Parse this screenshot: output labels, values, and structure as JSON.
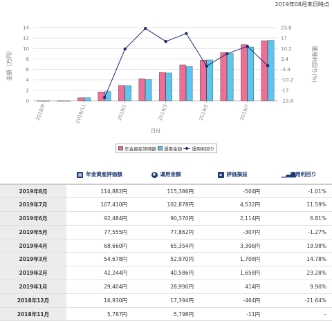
{
  "as_of": "2019年08月末日時点",
  "chart_data": {
    "type": "bar",
    "categories": [
      "2018/9",
      "2018/10",
      "2018/11",
      "2018/12",
      "2019/1",
      "2019/2",
      "2019/3",
      "2019/4",
      "2019/5",
      "2019/6",
      "2019/7",
      "2019/8"
    ],
    "x_tick_labels": [
      "2018/9",
      "2018/11",
      "2019/1",
      "2019/3",
      "2019/5",
      "2019/7"
    ],
    "xlabel": "日付",
    "ylabel": "金額（万円）",
    "y2label": "運用利回り(%)",
    "ylim": [
      0,
      14
    ],
    "y_ticks": [
      0,
      2,
      4,
      6,
      8,
      10,
      12,
      14
    ],
    "y2lim": [
      -23.8,
      23.8
    ],
    "y2_ticks": [
      "-23.8",
      "-17",
      "-10.2",
      "-3.4",
      "3.4",
      "10.2",
      "17",
      "23.8"
    ],
    "grid": true,
    "legend_position": "bottom",
    "series": [
      {
        "name": "年金資産評価額",
        "kind": "bar",
        "color": "#ee6e97",
        "values": [
          0,
          0,
          0.58,
          1.69,
          2.94,
          4.22,
          5.47,
          6.87,
          7.76,
          9.25,
          10.74,
          11.49
        ]
      },
      {
        "name": "運用金額",
        "kind": "bar",
        "color": "#5bc6ef",
        "values": [
          0,
          0,
          0.58,
          1.74,
          2.9,
          4.06,
          5.3,
          6.54,
          7.79,
          9.04,
          10.29,
          11.54
        ]
      },
      {
        "name": "運用利回り",
        "kind": "line",
        "color": "#1e2a6e",
        "values": [
          null,
          null,
          null,
          -21.64,
          9.9,
          23.28,
          14.78,
          19.98,
          -1.27,
          6.81,
          11.59,
          -1.01
        ]
      }
    ]
  },
  "table": {
    "headers": [
      {
        "label": "",
        "icon": ""
      },
      {
        "label": "年金資産評価額",
        "icon": "calculator-icon"
      },
      {
        "label": "運用金額",
        "icon": "yen-coin-icon"
      },
      {
        "label": "評価損益",
        "icon": "plus-minus-icon"
      },
      {
        "label": "運用利回り",
        "icon": "bar-chart-icon"
      }
    ],
    "rows": [
      {
        "month": "2019年8月",
        "asset": "114,882円",
        "invest": "115,386円",
        "pl": "-504円",
        "yield": "-1.01%"
      },
      {
        "month": "2019年7月",
        "asset": "107,410円",
        "invest": "102,878円",
        "pl": "4,532円",
        "yield": "11.59%"
      },
      {
        "month": "2019年6月",
        "asset": "92,484円",
        "invest": "90,370円",
        "pl": "2,114円",
        "yield": "6.81%"
      },
      {
        "month": "2019年5月",
        "asset": "77,555円",
        "invest": "77,862円",
        "pl": "-307円",
        "yield": "-1.27%"
      },
      {
        "month": "2019年4月",
        "asset": "68,660円",
        "invest": "65,354円",
        "pl": "3,306円",
        "yield": "19.98%"
      },
      {
        "month": "2019年3月",
        "asset": "54,678円",
        "invest": "52,970円",
        "pl": "1,708円",
        "yield": "14.78%"
      },
      {
        "month": "2019年2月",
        "asset": "42,244円",
        "invest": "40,586円",
        "pl": "1,658円",
        "yield": "23.28%"
      },
      {
        "month": "2019年1月",
        "asset": "29,404円",
        "invest": "28,990円",
        "pl": "414円",
        "yield": "9.90%"
      },
      {
        "month": "2018年12月",
        "asset": "16,930円",
        "invest": "17,394円",
        "pl": "-464円",
        "yield": "-21.64%"
      },
      {
        "month": "2018年11月",
        "asset": "5,787円",
        "invest": "5,798円",
        "pl": "-11円",
        "yield": "–"
      }
    ]
  }
}
